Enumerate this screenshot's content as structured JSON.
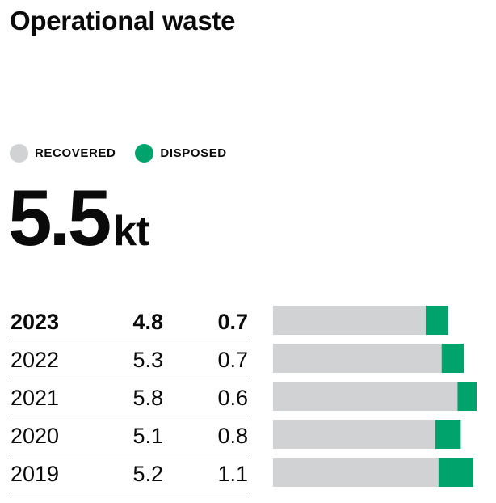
{
  "title": "Operational waste",
  "legend": [
    {
      "label": "RECOVERED",
      "color": "#d1d2d4"
    },
    {
      "label": "DISPOSED",
      "color": "#00a36c"
    }
  ],
  "headline": {
    "value": "5.5",
    "unit": "kt"
  },
  "chart_data": {
    "type": "bar",
    "orientation": "horizontal",
    "stacked": true,
    "categories": [
      "2023",
      "2022",
      "2021",
      "2020",
      "2019"
    ],
    "series": [
      {
        "name": "RECOVERED",
        "color": "#d1d2d4",
        "values": [
          4.8,
          5.3,
          5.8,
          5.1,
          5.2
        ]
      },
      {
        "name": "DISPOSED",
        "color": "#00a36c",
        "values": [
          0.7,
          0.7,
          0.6,
          0.8,
          1.1
        ]
      }
    ],
    "value_labels": [
      {
        "year": "2023",
        "recovered": "4.8",
        "disposed": "0.7"
      },
      {
        "year": "2022",
        "recovered": "5.3",
        "disposed": "0.7"
      },
      {
        "year": "2021",
        "recovered": "5.8",
        "disposed": "0.6"
      },
      {
        "year": "2020",
        "recovered": "5.1",
        "disposed": "0.8"
      },
      {
        "year": "2019",
        "recovered": "5.2",
        "disposed": "1.1"
      }
    ],
    "highlight_row": "2023",
    "grid": false
  }
}
